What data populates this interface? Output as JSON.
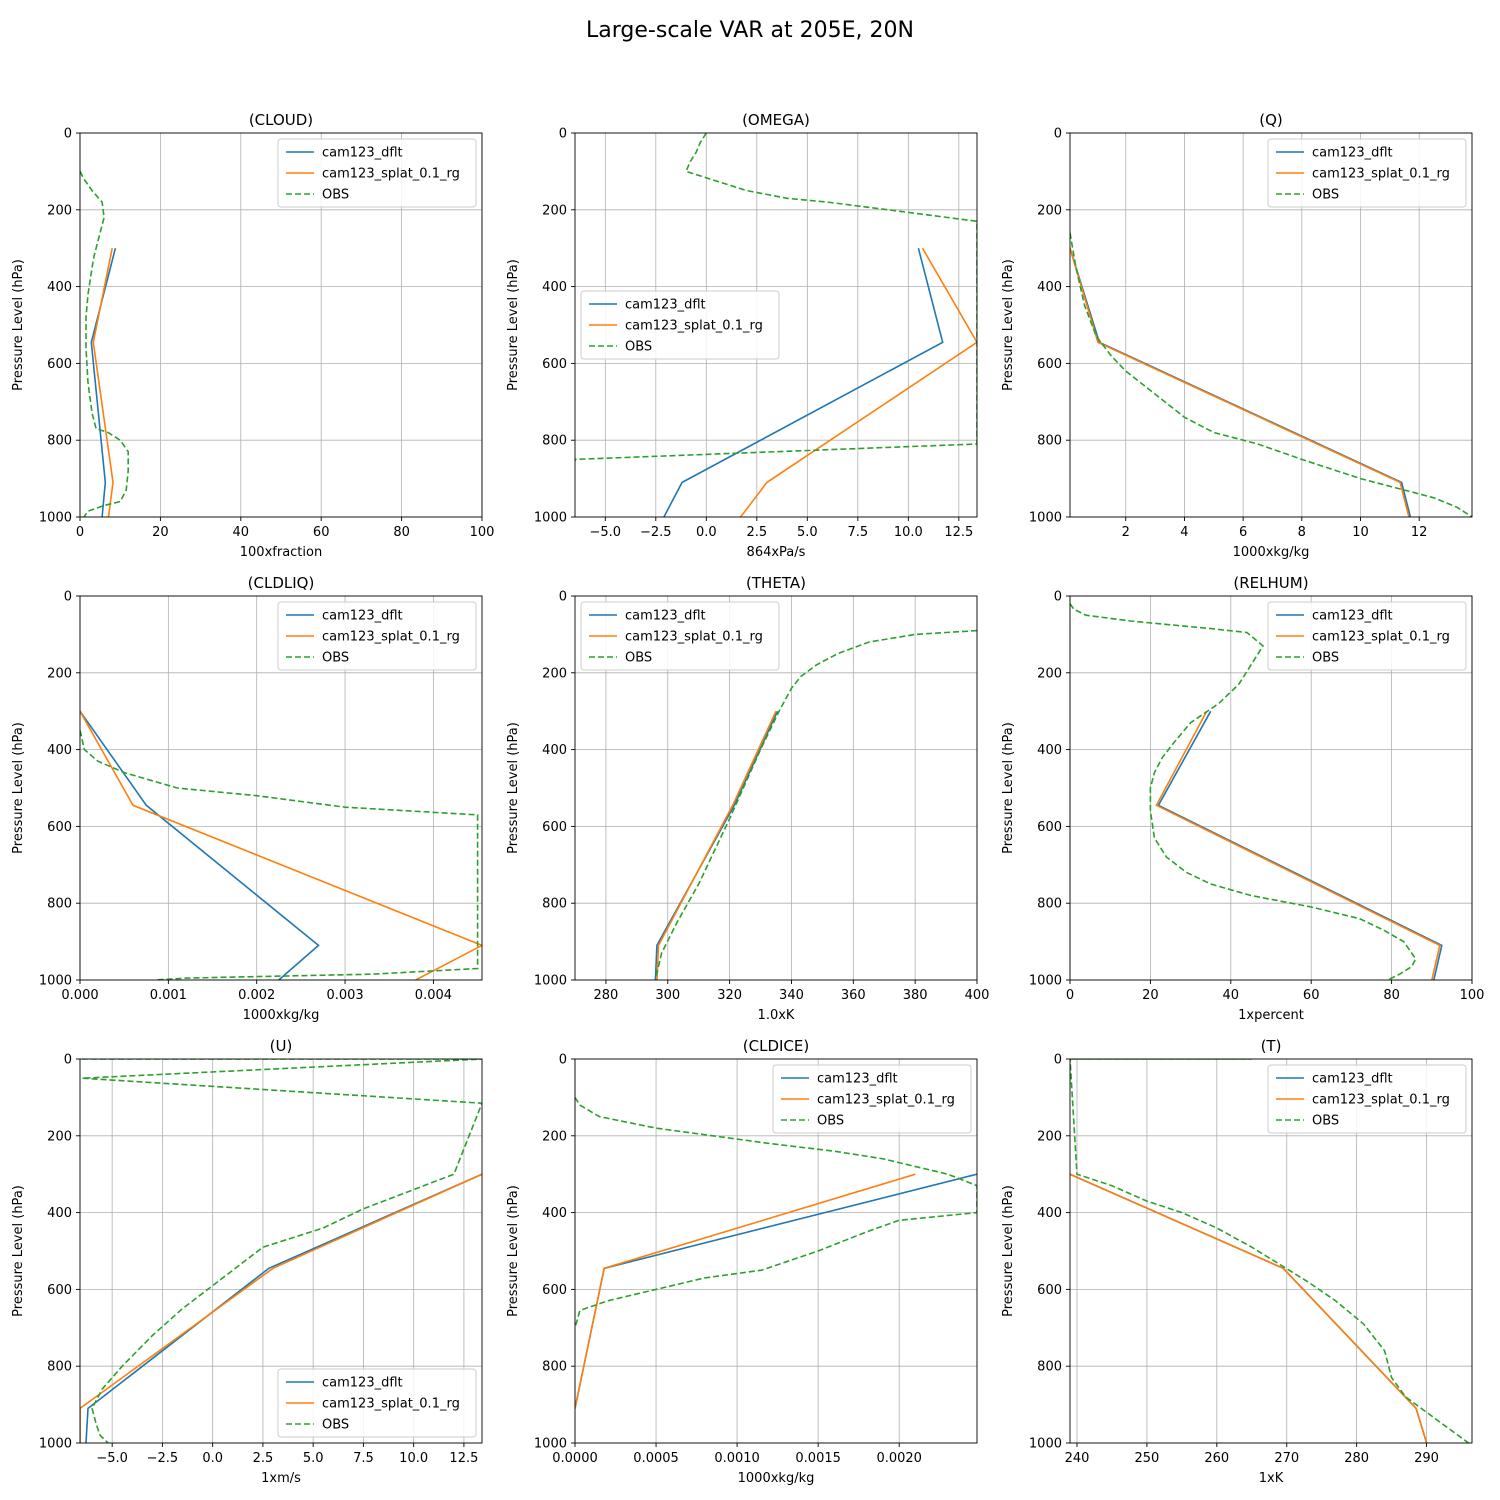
{
  "suptitle": "Large-scale VAR at 205E, 20N",
  "series_names": [
    "cam123_dflt",
    "cam123_splat_0.1_rg",
    "OBS"
  ],
  "colors": {
    "dflt": "#1f77b4",
    "splat": "#ff7f0e",
    "obs": "#2ca02c",
    "grid": "#b0b0b0"
  },
  "chart_data": [
    {
      "type": "line",
      "title": "(CLOUD)",
      "xlabel": "100xfraction",
      "ylabel": "Pressure Level (hPa)",
      "xlim": [
        0,
        100
      ],
      "ylim": [
        1000,
        0
      ],
      "xticks": [
        0,
        20,
        40,
        60,
        80,
        100
      ],
      "xtick_labels": [
        "0",
        "20",
        "40",
        "60",
        "80",
        "100"
      ],
      "yticks": [
        0,
        200,
        400,
        600,
        800,
        1000
      ],
      "ytick_labels": [
        "0",
        "200",
        "400",
        "600",
        "800",
        "1000"
      ],
      "legend": "upper right",
      "series": [
        {
          "name": "cam123_dflt",
          "key": "dflt",
          "x": [
            8.8,
            2.8,
            6.3,
            5.5
          ],
          "y": [
            300,
            545,
            910,
            1000
          ]
        },
        {
          "name": "cam123_splat_0.1_rg",
          "key": "splat",
          "x": [
            8.0,
            3.3,
            8.2,
            7.1
          ],
          "y": [
            300,
            545,
            910,
            1000
          ]
        },
        {
          "name": "OBS",
          "key": "obs",
          "x": [
            0,
            1,
            3,
            5.5,
            6,
            5,
            3.5,
            3,
            2,
            1.5,
            1.5,
            2,
            3,
            4,
            7,
            10,
            12,
            12,
            11.5,
            10,
            6,
            2,
            1
          ],
          "y": [
            100,
            120,
            150,
            180,
            220,
            260,
            320,
            350,
            420,
            480,
            560,
            650,
            730,
            770,
            780,
            800,
            830,
            880,
            930,
            960,
            970,
            985,
            1000
          ]
        }
      ]
    },
    {
      "type": "line",
      "title": "(OMEGA)",
      "xlabel": "864xPa/s",
      "ylabel": "Pressure Level (hPa)",
      "xlim": [
        -6.5,
        13.4
      ],
      "ylim": [
        1000,
        0
      ],
      "xticks": [
        -5,
        -2.5,
        0,
        2.5,
        5,
        7.5,
        10,
        12.5
      ],
      "xtick_labels": [
        "−5.0",
        "−2.5",
        "0.0",
        "2.5",
        "5.0",
        "7.5",
        "10.0",
        "12.5"
      ],
      "yticks": [
        0,
        200,
        400,
        600,
        800,
        1000
      ],
      "ytick_labels": [
        "0",
        "200",
        "400",
        "600",
        "800",
        "1000"
      ],
      "legend": "center left",
      "series": [
        {
          "name": "cam123_dflt",
          "key": "dflt",
          "x": [
            10.5,
            11.7,
            -1.2,
            -2.1
          ],
          "y": [
            300,
            545,
            910,
            1000
          ]
        },
        {
          "name": "cam123_splat_0.1_rg",
          "key": "splat",
          "x": [
            10.7,
            13.4,
            3.0,
            1.7
          ],
          "y": [
            300,
            545,
            910,
            1000
          ]
        },
        {
          "name": "OBS",
          "key": "obs",
          "x": [
            0,
            -0.3,
            -0.5,
            -0.8,
            -1,
            0.5,
            2,
            4,
            6,
            9,
            13.4,
            13.4,
            -6.5,
            -6.5
          ],
          "y": [
            0,
            25,
            50,
            75,
            100,
            125,
            150,
            170,
            180,
            200,
            230,
            810,
            850,
            855
          ]
        }
      ]
    },
    {
      "type": "line",
      "title": "(Q)",
      "xlabel": "1000xkg/kg",
      "ylabel": "Pressure Level (hPa)",
      "xlim": [
        0.1,
        13.8
      ],
      "ylim": [
        1000,
        0
      ],
      "xticks": [
        2,
        4,
        6,
        8,
        10,
        12
      ],
      "xtick_labels": [
        "2",
        "4",
        "6",
        "8",
        "10",
        "12"
      ],
      "yticks": [
        0,
        200,
        400,
        600,
        800,
        1000
      ],
      "ytick_labels": [
        "0",
        "200",
        "400",
        "600",
        "800",
        "1000"
      ],
      "legend": "upper right",
      "series": [
        {
          "name": "cam123_dflt",
          "key": "dflt",
          "x": [
            0.1,
            1.1,
            11.4,
            11.7
          ],
          "y": [
            300,
            545,
            910,
            1000
          ]
        },
        {
          "name": "cam123_splat_0.1_rg",
          "key": "splat",
          "x": [
            0.1,
            1.05,
            11.35,
            11.65
          ],
          "y": [
            300,
            545,
            910,
            1000
          ]
        },
        {
          "name": "OBS",
          "key": "obs",
          "x": [
            0.1,
            0.3,
            0.6,
            1,
            1.5,
            2,
            3,
            4,
            5,
            6.5,
            8,
            10,
            11.5,
            12.5,
            13.3,
            13.8
          ],
          "y": [
            260,
            350,
            450,
            530,
            580,
            620,
            680,
            740,
            780,
            810,
            850,
            900,
            930,
            950,
            975,
            1000
          ]
        }
      ]
    },
    {
      "type": "line",
      "title": "(CLDLIQ)",
      "xlabel": "1000xkg/kg",
      "ylabel": "Pressure Level (hPa)",
      "xlim": [
        0,
        0.00455
      ],
      "ylim": [
        1000,
        0
      ],
      "xticks": [
        0,
        0.001,
        0.002,
        0.003,
        0.004
      ],
      "xtick_labels": [
        "0.000",
        "0.001",
        "0.002",
        "0.003",
        "0.004"
      ],
      "yticks": [
        0,
        200,
        400,
        600,
        800,
        1000
      ],
      "ytick_labels": [
        "0",
        "200",
        "400",
        "600",
        "800",
        "1000"
      ],
      "legend": "upper right",
      "series": [
        {
          "name": "cam123_dflt",
          "key": "dflt",
          "x": [
            0,
            0.00075,
            0.0027,
            0.00225
          ],
          "y": [
            300,
            545,
            910,
            1000
          ]
        },
        {
          "name": "cam123_splat_0.1_rg",
          "key": "splat",
          "x": [
            0,
            0.0006,
            0.00455,
            0.0038
          ],
          "y": [
            300,
            545,
            910,
            1000
          ]
        },
        {
          "name": "OBS",
          "key": "obs",
          "x": [
            0,
            5e-05,
            0.0002,
            0.0005,
            0.0008,
            0.0011,
            0.002,
            0.003,
            0.0045,
            0.0045,
            0.0033,
            0.0022,
            0.0012,
            0.00085
          ],
          "y": [
            350,
            400,
            430,
            460,
            480,
            500,
            520,
            550,
            570,
            970,
            985,
            990,
            995,
            1000
          ]
        }
      ]
    },
    {
      "type": "line",
      "title": "(THETA)",
      "xlabel": "1.0xK",
      "ylabel": "Pressure Level (hPa)",
      "xlim": [
        270,
        400
      ],
      "ylim": [
        1000,
        0
      ],
      "xticks": [
        280,
        300,
        320,
        340,
        360,
        380,
        400
      ],
      "xtick_labels": [
        "280",
        "300",
        "320",
        "340",
        "360",
        "380",
        "400"
      ],
      "yticks": [
        0,
        200,
        400,
        600,
        800,
        1000
      ],
      "ytick_labels": [
        "0",
        "200",
        "400",
        "600",
        "800",
        "1000"
      ],
      "legend": "upper left",
      "series": [
        {
          "name": "cam123_dflt",
          "key": "dflt",
          "x": [
            335.5,
            321.5,
            296.5,
            296.0
          ],
          "y": [
            300,
            545,
            910,
            1000
          ]
        },
        {
          "name": "cam123_splat_0.1_rg",
          "key": "splat",
          "x": [
            335.0,
            321.0,
            297.0,
            296.5
          ],
          "y": [
            300,
            545,
            910,
            1000
          ]
        },
        {
          "name": "OBS",
          "key": "obs",
          "x": [
            400,
            380,
            365,
            355,
            348,
            343,
            340,
            336,
            330,
            320,
            310,
            303,
            298,
            296
          ],
          "y": [
            90,
            100,
            120,
            150,
            180,
            210,
            240,
            300,
            400,
            580,
            750,
            850,
            930,
            1000
          ]
        }
      ]
    },
    {
      "type": "line",
      "title": "(RELHUM)",
      "xlabel": "1xpercent",
      "ylabel": "Pressure Level (hPa)",
      "xlim": [
        0,
        100
      ],
      "ylim": [
        1000,
        0
      ],
      "xticks": [
        0,
        20,
        40,
        60,
        80,
        100
      ],
      "xtick_labels": [
        "0",
        "20",
        "40",
        "60",
        "80",
        "100"
      ],
      "yticks": [
        0,
        200,
        400,
        600,
        800,
        1000
      ],
      "ytick_labels": [
        "0",
        "200",
        "400",
        "600",
        "800",
        "1000"
      ],
      "legend": "upper right",
      "series": [
        {
          "name": "cam123_dflt",
          "key": "dflt",
          "x": [
            35,
            22,
            92.5,
            90.5
          ],
          "y": [
            300,
            545,
            910,
            1000
          ]
        },
        {
          "name": "cam123_splat_0.1_rg",
          "key": "splat",
          "x": [
            34,
            21.5,
            92.0,
            90.0
          ],
          "y": [
            300,
            545,
            910,
            1000
          ]
        },
        {
          "name": "OBS",
          "key": "obs",
          "x": [
            0,
            1,
            4,
            15,
            25,
            35,
            44,
            48,
            45,
            42,
            37,
            30,
            26,
            23,
            21,
            20,
            20,
            21,
            24,
            29,
            35,
            45,
            60,
            72,
            78,
            83,
            86,
            85,
            82,
            79
          ],
          "y": [
            20,
            35,
            50,
            65,
            75,
            85,
            95,
            130,
            180,
            230,
            280,
            330,
            380,
            420,
            460,
            500,
            560,
            630,
            680,
            720,
            750,
            780,
            810,
            840,
            870,
            900,
            945,
            965,
            985,
            1000
          ]
        }
      ]
    },
    {
      "type": "line",
      "title": "(U)",
      "xlabel": "1xm/s",
      "ylabel": "Pressure Level (hPa)",
      "xlim": [
        -6.6,
        13.4
      ],
      "ylim": [
        1000,
        0
      ],
      "xticks": [
        -5,
        -2.5,
        0,
        2.5,
        5,
        7.5,
        10,
        12.5
      ],
      "xtick_labels": [
        "−5.0",
        "−2.5",
        "0.0",
        "2.5",
        "5.0",
        "7.5",
        "10.0",
        "12.5"
      ],
      "yticks": [
        0,
        200,
        400,
        600,
        800,
        1000
      ],
      "ytick_labels": [
        "0",
        "200",
        "400",
        "600",
        "800",
        "1000"
      ],
      "legend": "lower right",
      "series": [
        {
          "name": "cam123_dflt",
          "key": "dflt",
          "x": [
            13.4,
            2.8,
            -6.2,
            -6.3
          ],
          "y": [
            300,
            545,
            910,
            1000
          ]
        },
        {
          "name": "cam123_splat_0.1_rg",
          "key": "splat",
          "x": [
            13.4,
            3.0,
            -6.6,
            -6.6
          ],
          "y": [
            300,
            545,
            910,
            1000
          ]
        },
        {
          "name": "OBS",
          "key": "obs",
          "x": [
            -6.5,
            13.4,
            13.4,
            -6.5,
            13.4,
            12,
            10,
            7.5,
            5.5,
            2.5,
            0,
            -1.5,
            -3,
            -4.5,
            -5.5,
            -6,
            -5.8,
            -5.6,
            -5.2
          ],
          "y": [
            0,
            0,
            0,
            50,
            115,
            300,
            340,
            390,
            440,
            490,
            590,
            650,
            720,
            800,
            860,
            910,
            950,
            980,
            1000
          ]
        }
      ]
    },
    {
      "type": "line",
      "title": "(CLDICE)",
      "xlabel": "1000xkg/kg",
      "ylabel": "Pressure Level (hPa)",
      "xlim": [
        0,
        0.00248
      ],
      "ylim": [
        1000,
        0
      ],
      "xticks": [
        0,
        0.0005,
        0.001,
        0.0015,
        0.002
      ],
      "xtick_labels": [
        "0.0000",
        "0.0005",
        "0.0010",
        "0.0015",
        "0.0020"
      ],
      "yticks": [
        0,
        200,
        400,
        600,
        800,
        1000
      ],
      "ytick_labels": [
        "0",
        "200",
        "400",
        "600",
        "800",
        "1000"
      ],
      "legend": "upper right",
      "series": [
        {
          "name": "cam123_dflt",
          "key": "dflt",
          "x": [
            0.00248,
            0.00018,
            0.0
          ],
          "y": [
            300,
            545,
            910
          ]
        },
        {
          "name": "cam123_splat_0.1_rg",
          "key": "splat",
          "x": [
            0.0021,
            0.00018,
            0.0
          ],
          "y": [
            300,
            545,
            910
          ]
        },
        {
          "name": "OBS",
          "key": "obs",
          "x": [
            0,
            3e-05,
            0.00015,
            0.0005,
            0.00085,
            0.0012,
            0.0016,
            0.0019,
            0.0023,
            0.00248,
            0.00248,
            0.002,
            0.0018,
            0.0015,
            0.00115,
            0.0008,
            0.0005,
            0.0002,
            3e-05,
            0.0
          ],
          "y": [
            100,
            120,
            150,
            180,
            200,
            220,
            240,
            260,
            300,
            330,
            400,
            420,
            450,
            500,
            550,
            570,
            600,
            630,
            655,
            700
          ]
        }
      ]
    },
    {
      "type": "line",
      "title": "(T)",
      "xlabel": "1xK",
      "ylabel": "Pressure Level (hPa)",
      "xlim": [
        239,
        296.5
      ],
      "ylim": [
        1000,
        0
      ],
      "xticks": [
        240,
        250,
        260,
        270,
        280,
        290
      ],
      "xtick_labels": [
        "240",
        "250",
        "260",
        "270",
        "280",
        "290"
      ],
      "yticks": [
        0,
        200,
        400,
        600,
        800,
        1000
      ],
      "ytick_labels": [
        "0",
        "200",
        "400",
        "600",
        "800",
        "1000"
      ],
      "legend": "upper right",
      "series": [
        {
          "name": "cam123_dflt",
          "key": "dflt",
          "x": [
            239,
            269.5,
            288.5,
            290.0
          ],
          "y": [
            300,
            545,
            910,
            1000
          ]
        },
        {
          "name": "cam123_splat_0.1_rg",
          "key": "splat",
          "x": [
            239,
            269.5,
            288.5,
            290.0
          ],
          "y": [
            300,
            545,
            910,
            1000
          ]
        },
        {
          "name": "OBS",
          "key": "obs",
          "x": [
            239,
            265,
            239,
            240,
            245,
            250,
            255,
            260,
            265,
            269,
            273,
            277,
            281,
            284,
            285,
            287,
            290,
            293,
            296
          ],
          "y": [
            0,
            0,
            0,
            300,
            330,
            370,
            400,
            440,
            490,
            535,
            580,
            630,
            690,
            760,
            830,
            880,
            920,
            960,
            1000
          ]
        }
      ]
    }
  ]
}
